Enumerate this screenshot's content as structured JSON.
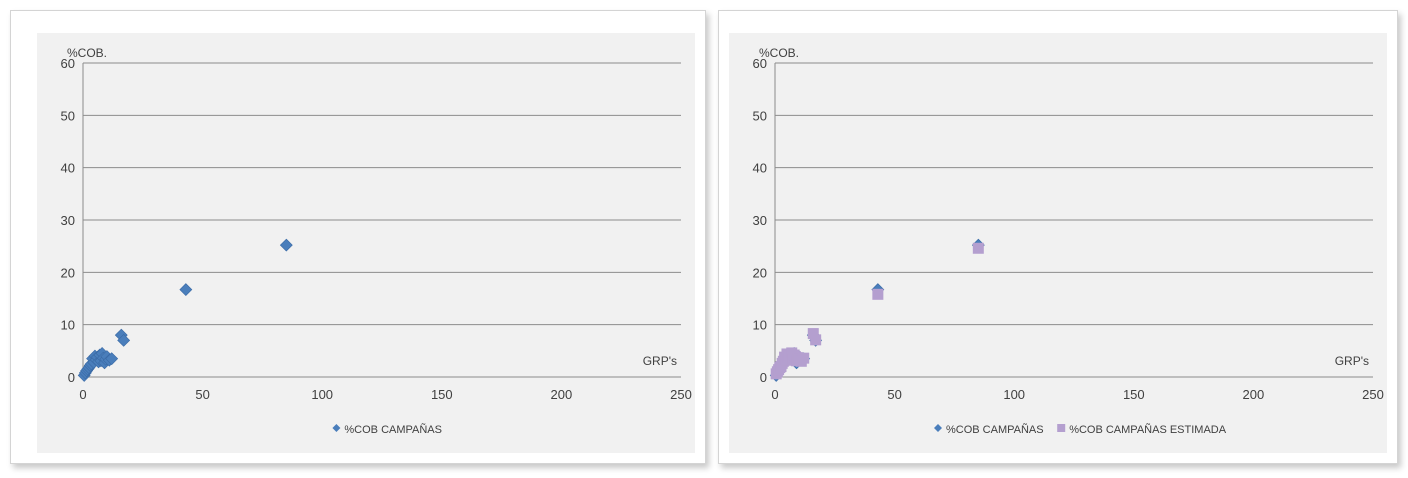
{
  "colors": {
    "series1": "#4a7ebb",
    "series2": "#b49fcf",
    "grid": "#8c8c8c",
    "plot_bg": "#f1f1f1"
  },
  "chart_data": [
    {
      "type": "scatter",
      "ylabel": "%COB.",
      "xlabel": "GRP's",
      "xlim": [
        0,
        250
      ],
      "ylim": [
        0,
        60
      ],
      "x_ticks": [
        0,
        50,
        100,
        150,
        200,
        250
      ],
      "y_ticks": [
        0,
        10,
        20,
        30,
        40,
        50,
        60
      ],
      "grid": true,
      "legend_position": "bottom",
      "series": [
        {
          "name": "%COB CAMPAÑAS",
          "marker": "diamond",
          "points": [
            [
              0.5,
              0.3
            ],
            [
              1,
              0.8
            ],
            [
              1.5,
              1.2
            ],
            [
              2,
              1.5
            ],
            [
              2.5,
              1.8
            ],
            [
              3,
              2.2
            ],
            [
              3.5,
              2.5
            ],
            [
              4,
              3.5
            ],
            [
              4.5,
              2.8
            ],
            [
              5,
              4.0
            ],
            [
              5.5,
              3.3
            ],
            [
              6,
              3.8
            ],
            [
              6.5,
              2.9
            ],
            [
              7,
              4.2
            ],
            [
              7.5,
              3.1
            ],
            [
              8,
              4.5
            ],
            [
              8.5,
              3.6
            ],
            [
              9,
              2.7
            ],
            [
              9.5,
              3.4
            ],
            [
              10,
              3.9
            ],
            [
              11,
              3.2
            ],
            [
              12,
              3.5
            ],
            [
              16,
              8.0
            ],
            [
              17,
              7.0
            ],
            [
              43,
              16.7
            ],
            [
              85,
              25.2
            ]
          ]
        }
      ]
    },
    {
      "type": "scatter",
      "ylabel": "%COB.",
      "xlabel": "GRP's",
      "xlim": [
        0,
        250
      ],
      "ylim": [
        0,
        60
      ],
      "x_ticks": [
        0,
        50,
        100,
        150,
        200,
        250
      ],
      "y_ticks": [
        0,
        10,
        20,
        30,
        40,
        50,
        60
      ],
      "grid": true,
      "legend_position": "bottom",
      "series": [
        {
          "name": "%COB CAMPAÑAS",
          "marker": "diamond",
          "points": [
            [
              0.5,
              0.3
            ],
            [
              1,
              0.8
            ],
            [
              2,
              1.5
            ],
            [
              3,
              2.2
            ],
            [
              4,
              3.5
            ],
            [
              5,
              4.0
            ],
            [
              6,
              3.8
            ],
            [
              7,
              4.2
            ],
            [
              8,
              4.5
            ],
            [
              9,
              2.7
            ],
            [
              10,
              3.9
            ],
            [
              12,
              3.5
            ],
            [
              16,
              8.0
            ],
            [
              17,
              7.0
            ],
            [
              43,
              16.7
            ],
            [
              85,
              25.2
            ]
          ]
        },
        {
          "name": "%COB CAMPAÑAS ESTIMADA",
          "marker": "square",
          "points": [
            [
              0.5,
              0.6
            ],
            [
              1,
              1.0
            ],
            [
              1.5,
              1.4
            ],
            [
              2,
              1.8
            ],
            [
              2.5,
              2.0
            ],
            [
              3,
              2.6
            ],
            [
              3.5,
              3.0
            ],
            [
              4,
              3.8
            ],
            [
              4.5,
              3.2
            ],
            [
              5,
              4.4
            ],
            [
              5.5,
              3.6
            ],
            [
              6,
              4.1
            ],
            [
              6.5,
              3.3
            ],
            [
              7,
              4.6
            ],
            [
              7.5,
              3.5
            ],
            [
              8,
              4.2
            ],
            [
              8.5,
              3.9
            ],
            [
              9,
              3.1
            ],
            [
              9.5,
              3.7
            ],
            [
              10,
              3.4
            ],
            [
              11,
              3.0
            ],
            [
              12,
              3.6
            ],
            [
              16,
              8.3
            ],
            [
              17,
              7.1
            ],
            [
              43,
              15.8
            ],
            [
              85,
              24.6
            ]
          ]
        }
      ]
    }
  ]
}
